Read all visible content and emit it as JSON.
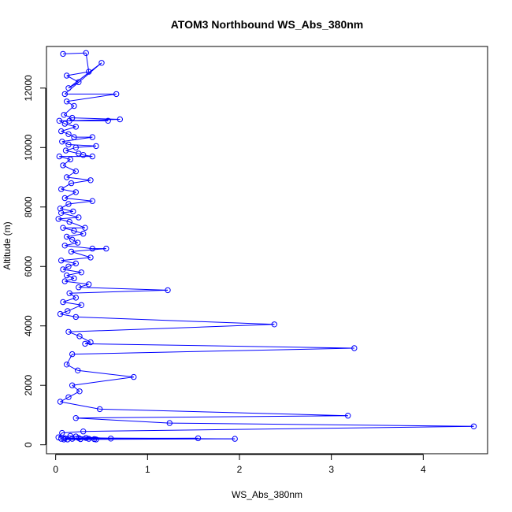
{
  "chart_data": {
    "type": "line",
    "title": "ATOM3 Northbound WS_Abs_380nm",
    "xlabel": "WS_Abs_380nm",
    "ylabel": "Altitude (m)",
    "xlim": [
      -0.1,
      4.7
    ],
    "ylim": [
      -300,
      13400
    ],
    "xticks": [
      0,
      1,
      2,
      3,
      4
    ],
    "yticks": [
      0,
      2000,
      4000,
      6000,
      8000,
      10000,
      12000
    ],
    "grid": false,
    "legend": "none",
    "series_color": "#0000ff",
    "marker": "open-circle",
    "points": [
      [
        0.08,
        13150
      ],
      [
        0.33,
        13180
      ],
      [
        0.36,
        12550
      ],
      [
        0.12,
        12420
      ],
      [
        0.25,
        12200
      ],
      [
        0.14,
        12000
      ],
      [
        0.5,
        12850
      ],
      [
        0.1,
        11800
      ],
      [
        0.66,
        11800
      ],
      [
        0.12,
        11550
      ],
      [
        0.2,
        11400
      ],
      [
        0.09,
        11100
      ],
      [
        0.18,
        11000
      ],
      [
        0.7,
        10950
      ],
      [
        0.15,
        10900
      ],
      [
        0.57,
        10900
      ],
      [
        0.04,
        10900
      ],
      [
        0.1,
        10800
      ],
      [
        0.22,
        10700
      ],
      [
        0.06,
        10550
      ],
      [
        0.14,
        10450
      ],
      [
        0.2,
        10350
      ],
      [
        0.4,
        10350
      ],
      [
        0.07,
        10200
      ],
      [
        0.14,
        10100
      ],
      [
        0.44,
        10050
      ],
      [
        0.22,
        10000
      ],
      [
        0.11,
        9900
      ],
      [
        0.25,
        9800
      ],
      [
        0.3,
        9750
      ],
      [
        0.4,
        9700
      ],
      [
        0.04,
        9700
      ],
      [
        0.16,
        9600
      ],
      [
        0.08,
        9400
      ],
      [
        0.22,
        9200
      ],
      [
        0.12,
        9000
      ],
      [
        0.38,
        8900
      ],
      [
        0.17,
        8800
      ],
      [
        0.06,
        8600
      ],
      [
        0.22,
        8500
      ],
      [
        0.1,
        8300
      ],
      [
        0.4,
        8200
      ],
      [
        0.14,
        8100
      ],
      [
        0.05,
        7950
      ],
      [
        0.19,
        7850
      ],
      [
        0.06,
        7800
      ],
      [
        0.25,
        7650
      ],
      [
        0.03,
        7600
      ],
      [
        0.15,
        7500
      ],
      [
        0.32,
        7300
      ],
      [
        0.08,
        7300
      ],
      [
        0.2,
        7200
      ],
      [
        0.3,
        7100
      ],
      [
        0.12,
        7000
      ],
      [
        0.18,
        6900
      ],
      [
        0.24,
        6800
      ],
      [
        0.1,
        6700
      ],
      [
        0.4,
        6600
      ],
      [
        0.55,
        6600
      ],
      [
        0.17,
        6500
      ],
      [
        0.38,
        6300
      ],
      [
        0.06,
        6200
      ],
      [
        0.22,
        6100
      ],
      [
        0.14,
        6000
      ],
      [
        0.08,
        5900
      ],
      [
        0.28,
        5800
      ],
      [
        0.12,
        5700
      ],
      [
        0.2,
        5600
      ],
      [
        0.1,
        5500
      ],
      [
        0.36,
        5400
      ],
      [
        0.25,
        5300
      ],
      [
        1.22,
        5200
      ],
      [
        0.15,
        5100
      ],
      [
        0.22,
        4950
      ],
      [
        0.08,
        4800
      ],
      [
        0.28,
        4700
      ],
      [
        0.13,
        4500
      ],
      [
        0.05,
        4400
      ],
      [
        0.22,
        4300
      ],
      [
        2.38,
        4050
      ],
      [
        0.14,
        3800
      ],
      [
        0.26,
        3650
      ],
      [
        0.38,
        3450
      ],
      [
        0.32,
        3400
      ],
      [
        3.25,
        3250
      ],
      [
        0.18,
        3050
      ],
      [
        0.12,
        2700
      ],
      [
        0.24,
        2500
      ],
      [
        0.85,
        2280
      ],
      [
        0.18,
        2000
      ],
      [
        0.26,
        1800
      ],
      [
        0.14,
        1600
      ],
      [
        0.05,
        1450
      ],
      [
        0.48,
        1200
      ],
      [
        3.18,
        980
      ],
      [
        0.22,
        900
      ],
      [
        1.24,
        730
      ],
      [
        4.55,
        620
      ],
      [
        0.3,
        450
      ],
      [
        0.07,
        400
      ],
      [
        0.03,
        250
      ],
      [
        0.16,
        300
      ],
      [
        0.22,
        280
      ],
      [
        0.6,
        210
      ],
      [
        0.1,
        220
      ],
      [
        1.55,
        220
      ],
      [
        0.06,
        200
      ],
      [
        0.33,
        230
      ],
      [
        1.95,
        200
      ],
      [
        0.13,
        180
      ],
      [
        0.44,
        180
      ],
      [
        0.25,
        230
      ],
      [
        0.18,
        200
      ],
      [
        0.42,
        190
      ],
      [
        0.09,
        180
      ],
      [
        0.36,
        200
      ],
      [
        0.27,
        190
      ]
    ]
  }
}
